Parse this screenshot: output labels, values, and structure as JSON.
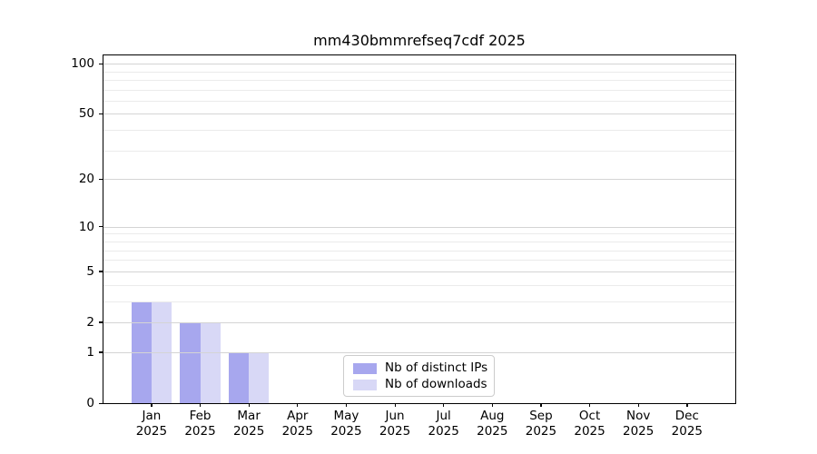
{
  "chart_data": {
    "type": "bar",
    "title": "mm430bmmrefseq7cdf 2025",
    "year": "2025",
    "categories": [
      "Jan",
      "Feb",
      "Mar",
      "Apr",
      "May",
      "Jun",
      "Jul",
      "Aug",
      "Sep",
      "Oct",
      "Nov",
      "Dec"
    ],
    "series": [
      {
        "name": "Nb of distinct IPs",
        "color": "#a7a7ee",
        "values": [
          3,
          2,
          1,
          0,
          0,
          0,
          0,
          0,
          0,
          0,
          0,
          0
        ]
      },
      {
        "name": "Nb of downloads",
        "color": "#d8d8f6",
        "values": [
          3,
          2,
          1,
          0,
          0,
          0,
          0,
          0,
          0,
          0,
          0,
          0
        ]
      }
    ],
    "xlabel": "",
    "ylabel": "",
    "yscale": "log10(1+v)",
    "ylim": [
      0,
      112
    ],
    "yticks": [
      0,
      1,
      2,
      5,
      10,
      20,
      50,
      100
    ],
    "yticks_minor": [
      3,
      4,
      6,
      7,
      8,
      9,
      30,
      40,
      60,
      70,
      80,
      90
    ],
    "grid": "horizontal",
    "legend_position": "lower center",
    "colors": {
      "major_grid": "#d4d4d4",
      "minor_grid": "#ebebeb",
      "axis": "#000000",
      "background": "#ffffff"
    }
  }
}
